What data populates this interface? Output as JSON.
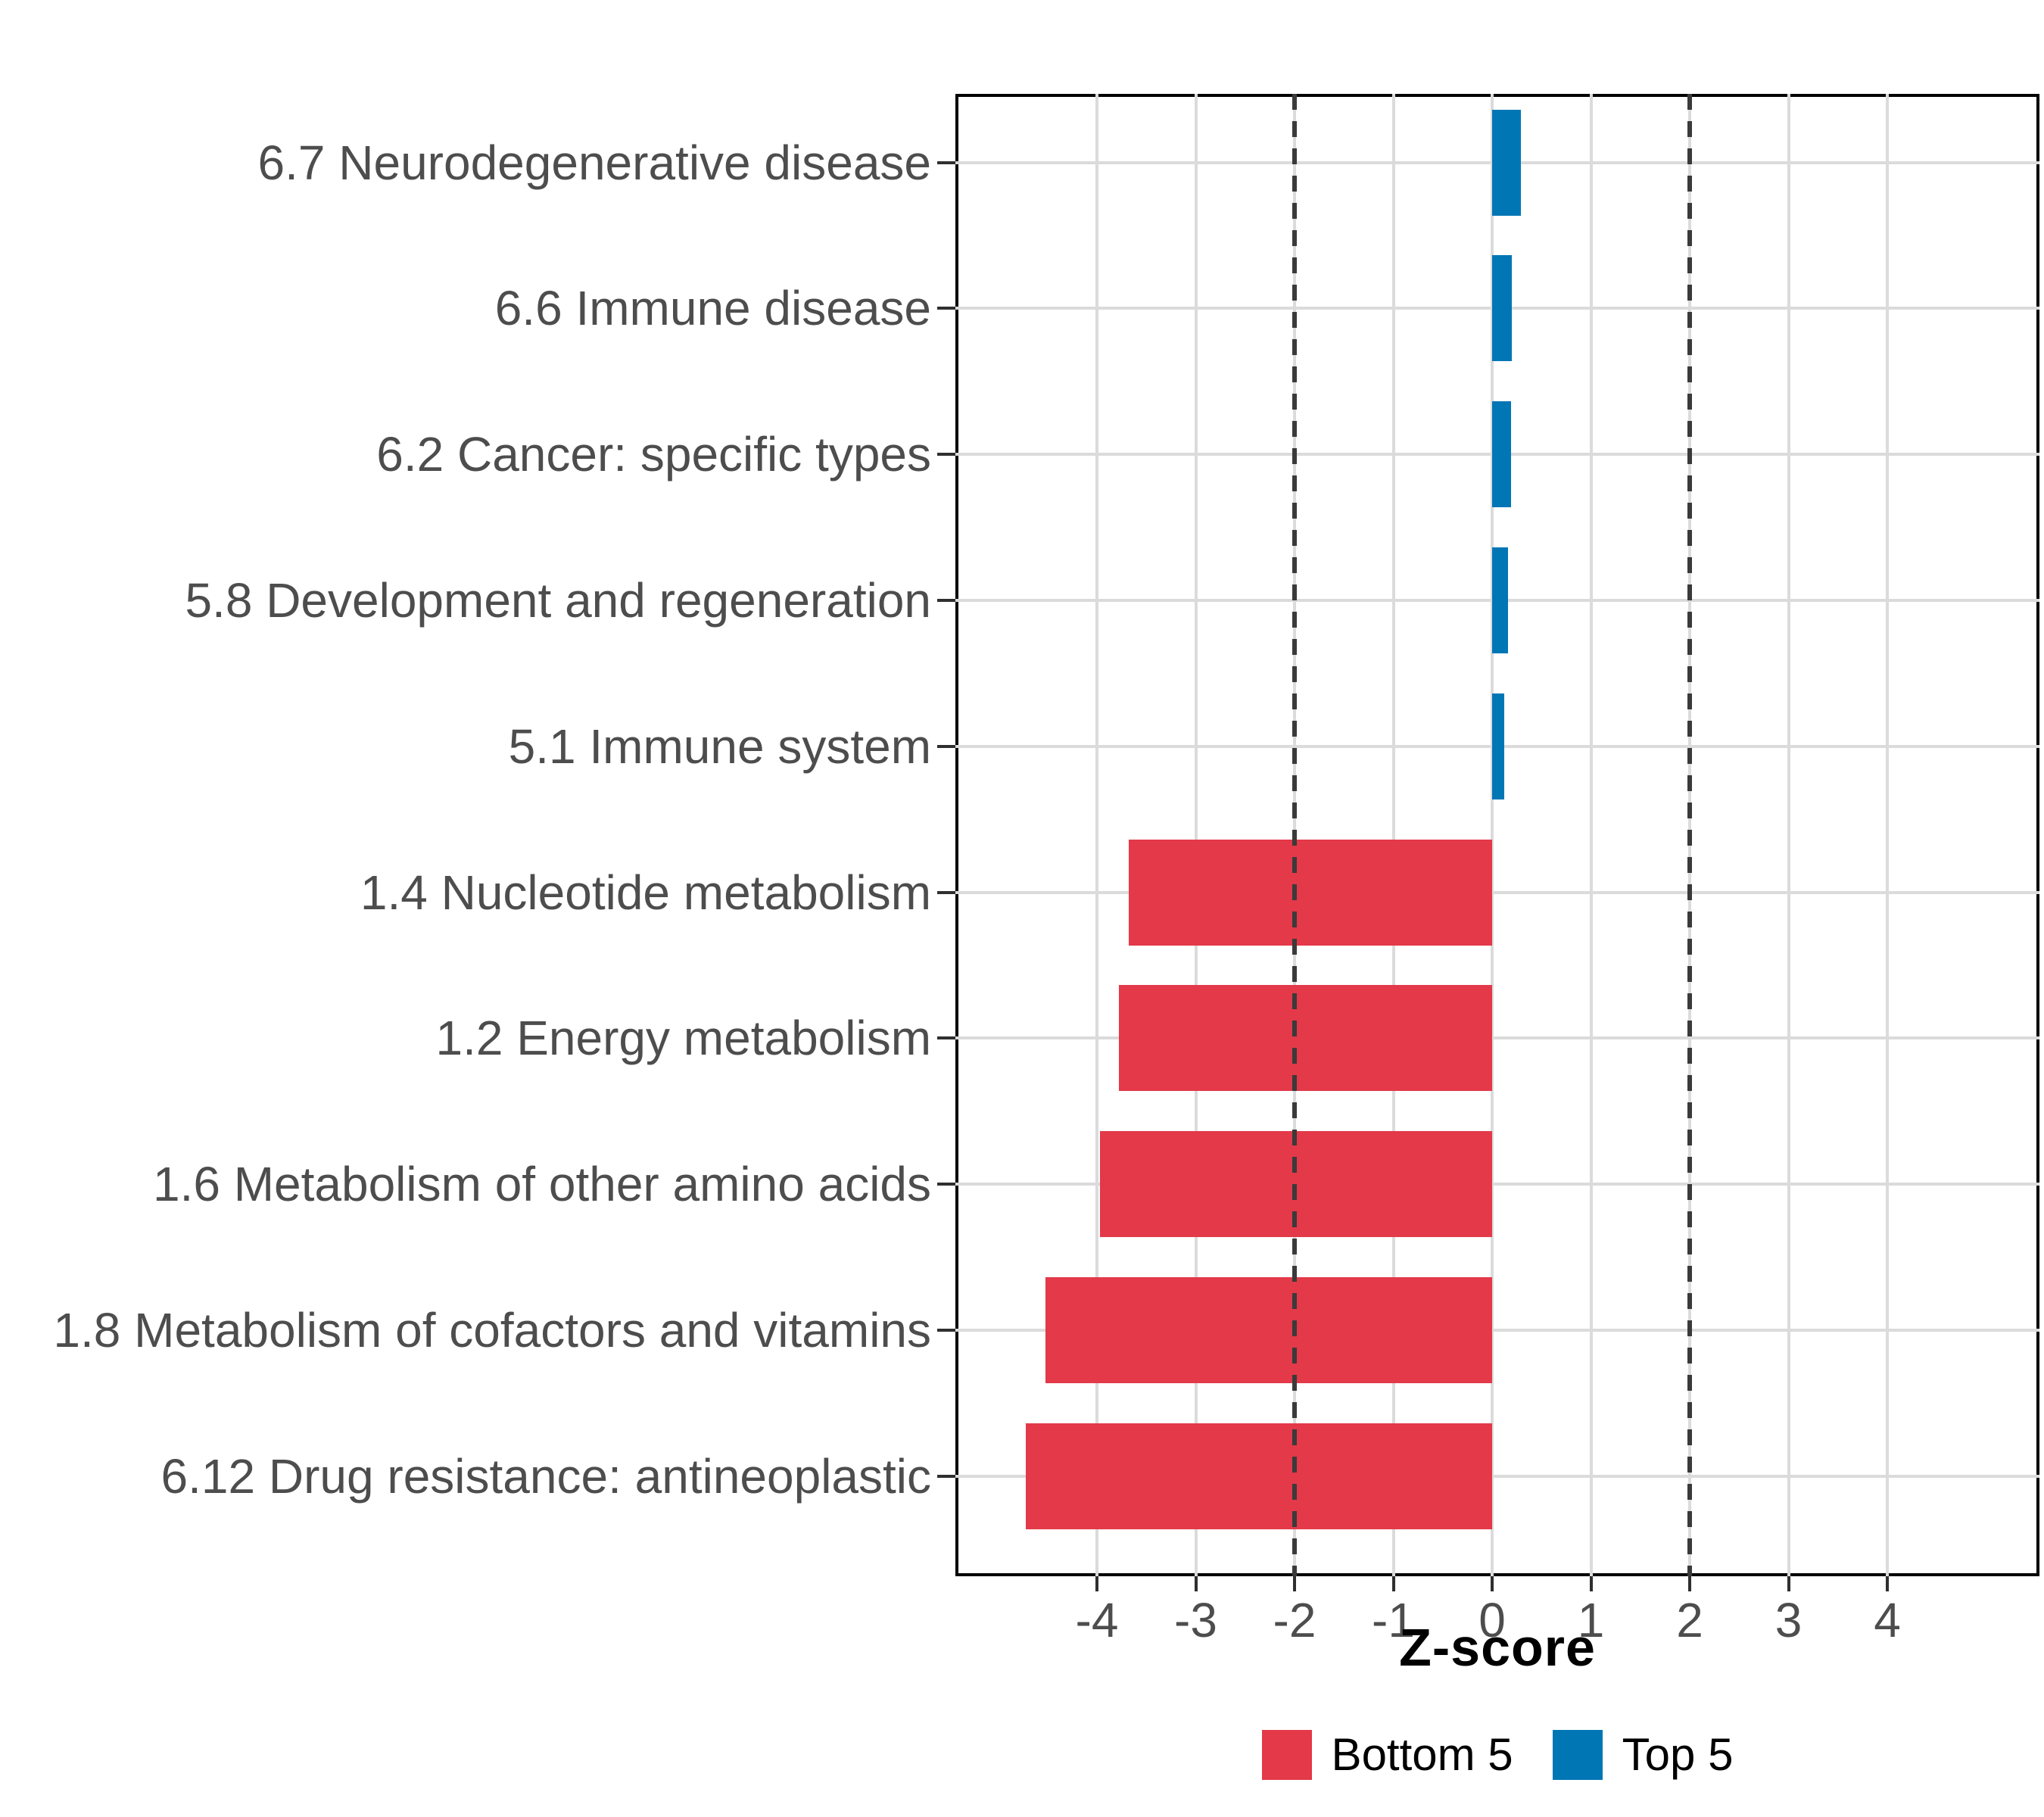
{
  "chart_data": {
    "type": "bar",
    "orientation": "horizontal",
    "title": "",
    "xlabel": "Z-score",
    "ylabel": "",
    "xlim": [
      -5.5,
      5.5
    ],
    "x_ticks": [
      -4,
      -3,
      -2,
      -1,
      0,
      1,
      2,
      3,
      4
    ],
    "reference_lines": [
      -2,
      2
    ],
    "grid": "major-only",
    "legend_position": "bottom",
    "categories": [
      "6.7 Neurodegenerative disease",
      "6.6 Immune disease",
      "6.2 Cancer: specific types",
      "5.8 Development and regeneration",
      "5.1 Immune system",
      "1.4 Nucleotide metabolism",
      "1.2 Energy metabolism",
      "1.6 Metabolism of other amino acids",
      "1.8 Metabolism of cofactors and vitamins",
      "6.12 Drug resistance: antineoplastic"
    ],
    "values": [
      0.29,
      0.2,
      0.19,
      0.16,
      0.12,
      -3.68,
      -3.78,
      -3.97,
      -4.52,
      -4.72
    ],
    "groups": [
      "Top 5",
      "Top 5",
      "Top 5",
      "Top 5",
      "Top 5",
      "Bottom 5",
      "Bottom 5",
      "Bottom 5",
      "Bottom 5",
      "Bottom 5"
    ],
    "group_colors": {
      "Bottom 5": "#E33949",
      "Top 5": "#0076B5"
    },
    "legend": [
      {
        "label": "Bottom 5",
        "color": "#E33949"
      },
      {
        "label": "Top 5",
        "color": "#0076B5"
      }
    ]
  },
  "style": {
    "background": "#FFFFFF",
    "panel_border": "#000000",
    "gridline": "#DBDBDB",
    "reference_line": "#3A3A3A",
    "axis_text": "#4D4D4D",
    "tick_mark": "#2F2F2F"
  }
}
